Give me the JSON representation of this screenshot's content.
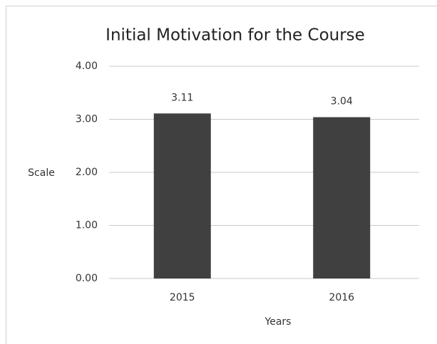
{
  "chart_data": {
    "type": "bar",
    "title": "Initial Motivation for the Course",
    "categories": [
      "2015",
      "2016"
    ],
    "values": [
      3.11,
      3.04
    ],
    "color": "#404040",
    "ylim": [
      0,
      4
    ],
    "yticks": [
      {
        "value": 0,
        "label": "0.00"
      },
      {
        "value": 1,
        "label": "1.00"
      },
      {
        "value": 2,
        "label": "2.00"
      },
      {
        "value": 3,
        "label": "3.00"
      },
      {
        "value": 4,
        "label": "4.00"
      }
    ],
    "grid": true,
    "y_label": "Scale",
    "x_label": "Years"
  }
}
